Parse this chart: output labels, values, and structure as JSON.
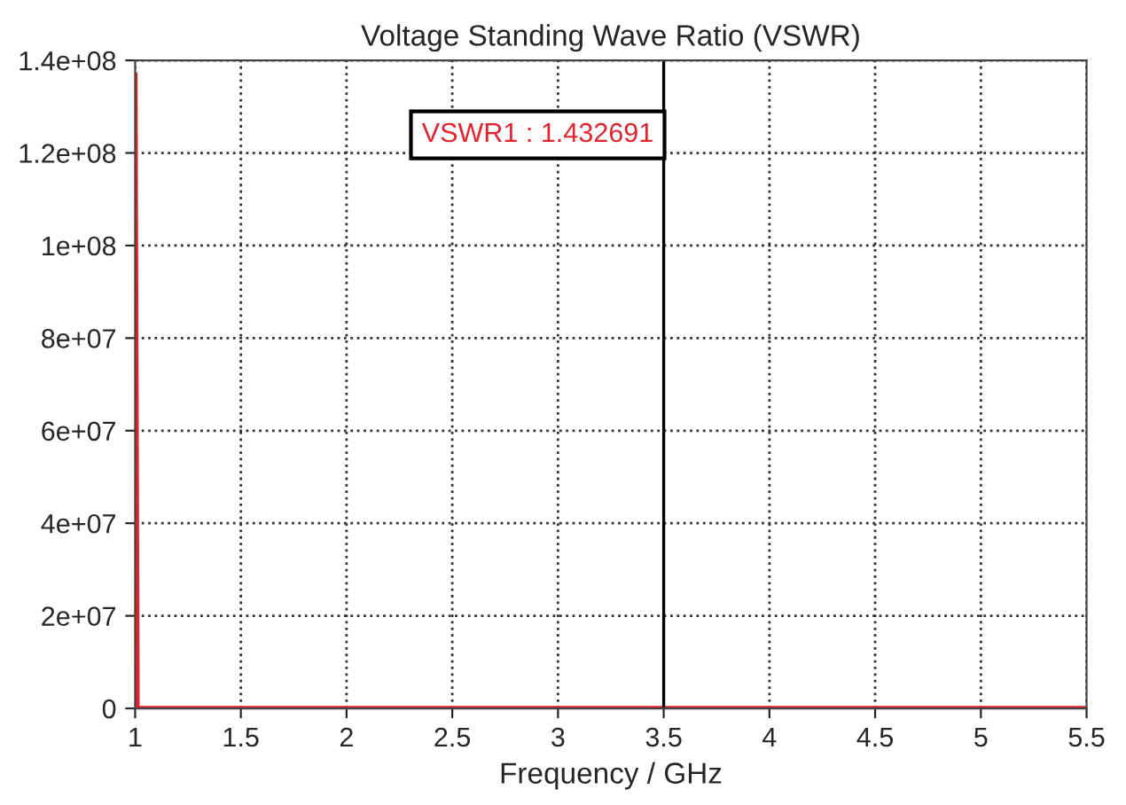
{
  "chart_data": {
    "type": "line",
    "title": "Voltage Standing Wave Ratio (VSWR)",
    "xlabel": "Frequency / GHz",
    "x": [
      1,
      1.01,
      1.5,
      2,
      2.5,
      3,
      3.5,
      4,
      4.5,
      5,
      5.5
    ],
    "series": [
      {
        "color": "#e8202a",
        "values": [
          137000000,
          0,
          0,
          0,
          0,
          0,
          0,
          0,
          0,
          0,
          0
        ]
      }
    ],
    "xlim": [
      1,
      5.5
    ],
    "xticks": [
      1,
      1.5,
      2,
      2.5,
      3,
      3.5,
      4,
      4.5,
      5,
      5.5
    ],
    "ylim": [
      0,
      140000000
    ],
    "yticks": [
      {
        "value": 0,
        "label": "0"
      },
      {
        "value": 20000000,
        "label": "2e+07"
      },
      {
        "value": 40000000,
        "label": "4e+07"
      },
      {
        "value": 60000000,
        "label": "6e+07"
      },
      {
        "value": 80000000,
        "label": "8e+07"
      },
      {
        "value": 100000000,
        "label": "1e+08"
      },
      {
        "value": 120000000,
        "label": "1.2e+08"
      },
      {
        "value": 140000000,
        "label": "1.4e+08"
      }
    ],
    "ref_lines": [
      {
        "axis": "x",
        "value": 3.5,
        "color": "#000000",
        "line_style": "solid"
      }
    ],
    "annotations": [
      "VSWR1 : 1.432691"
    ],
    "grid": true,
    "line_style": "solid",
    "marker": "none",
    "legend": false
  }
}
